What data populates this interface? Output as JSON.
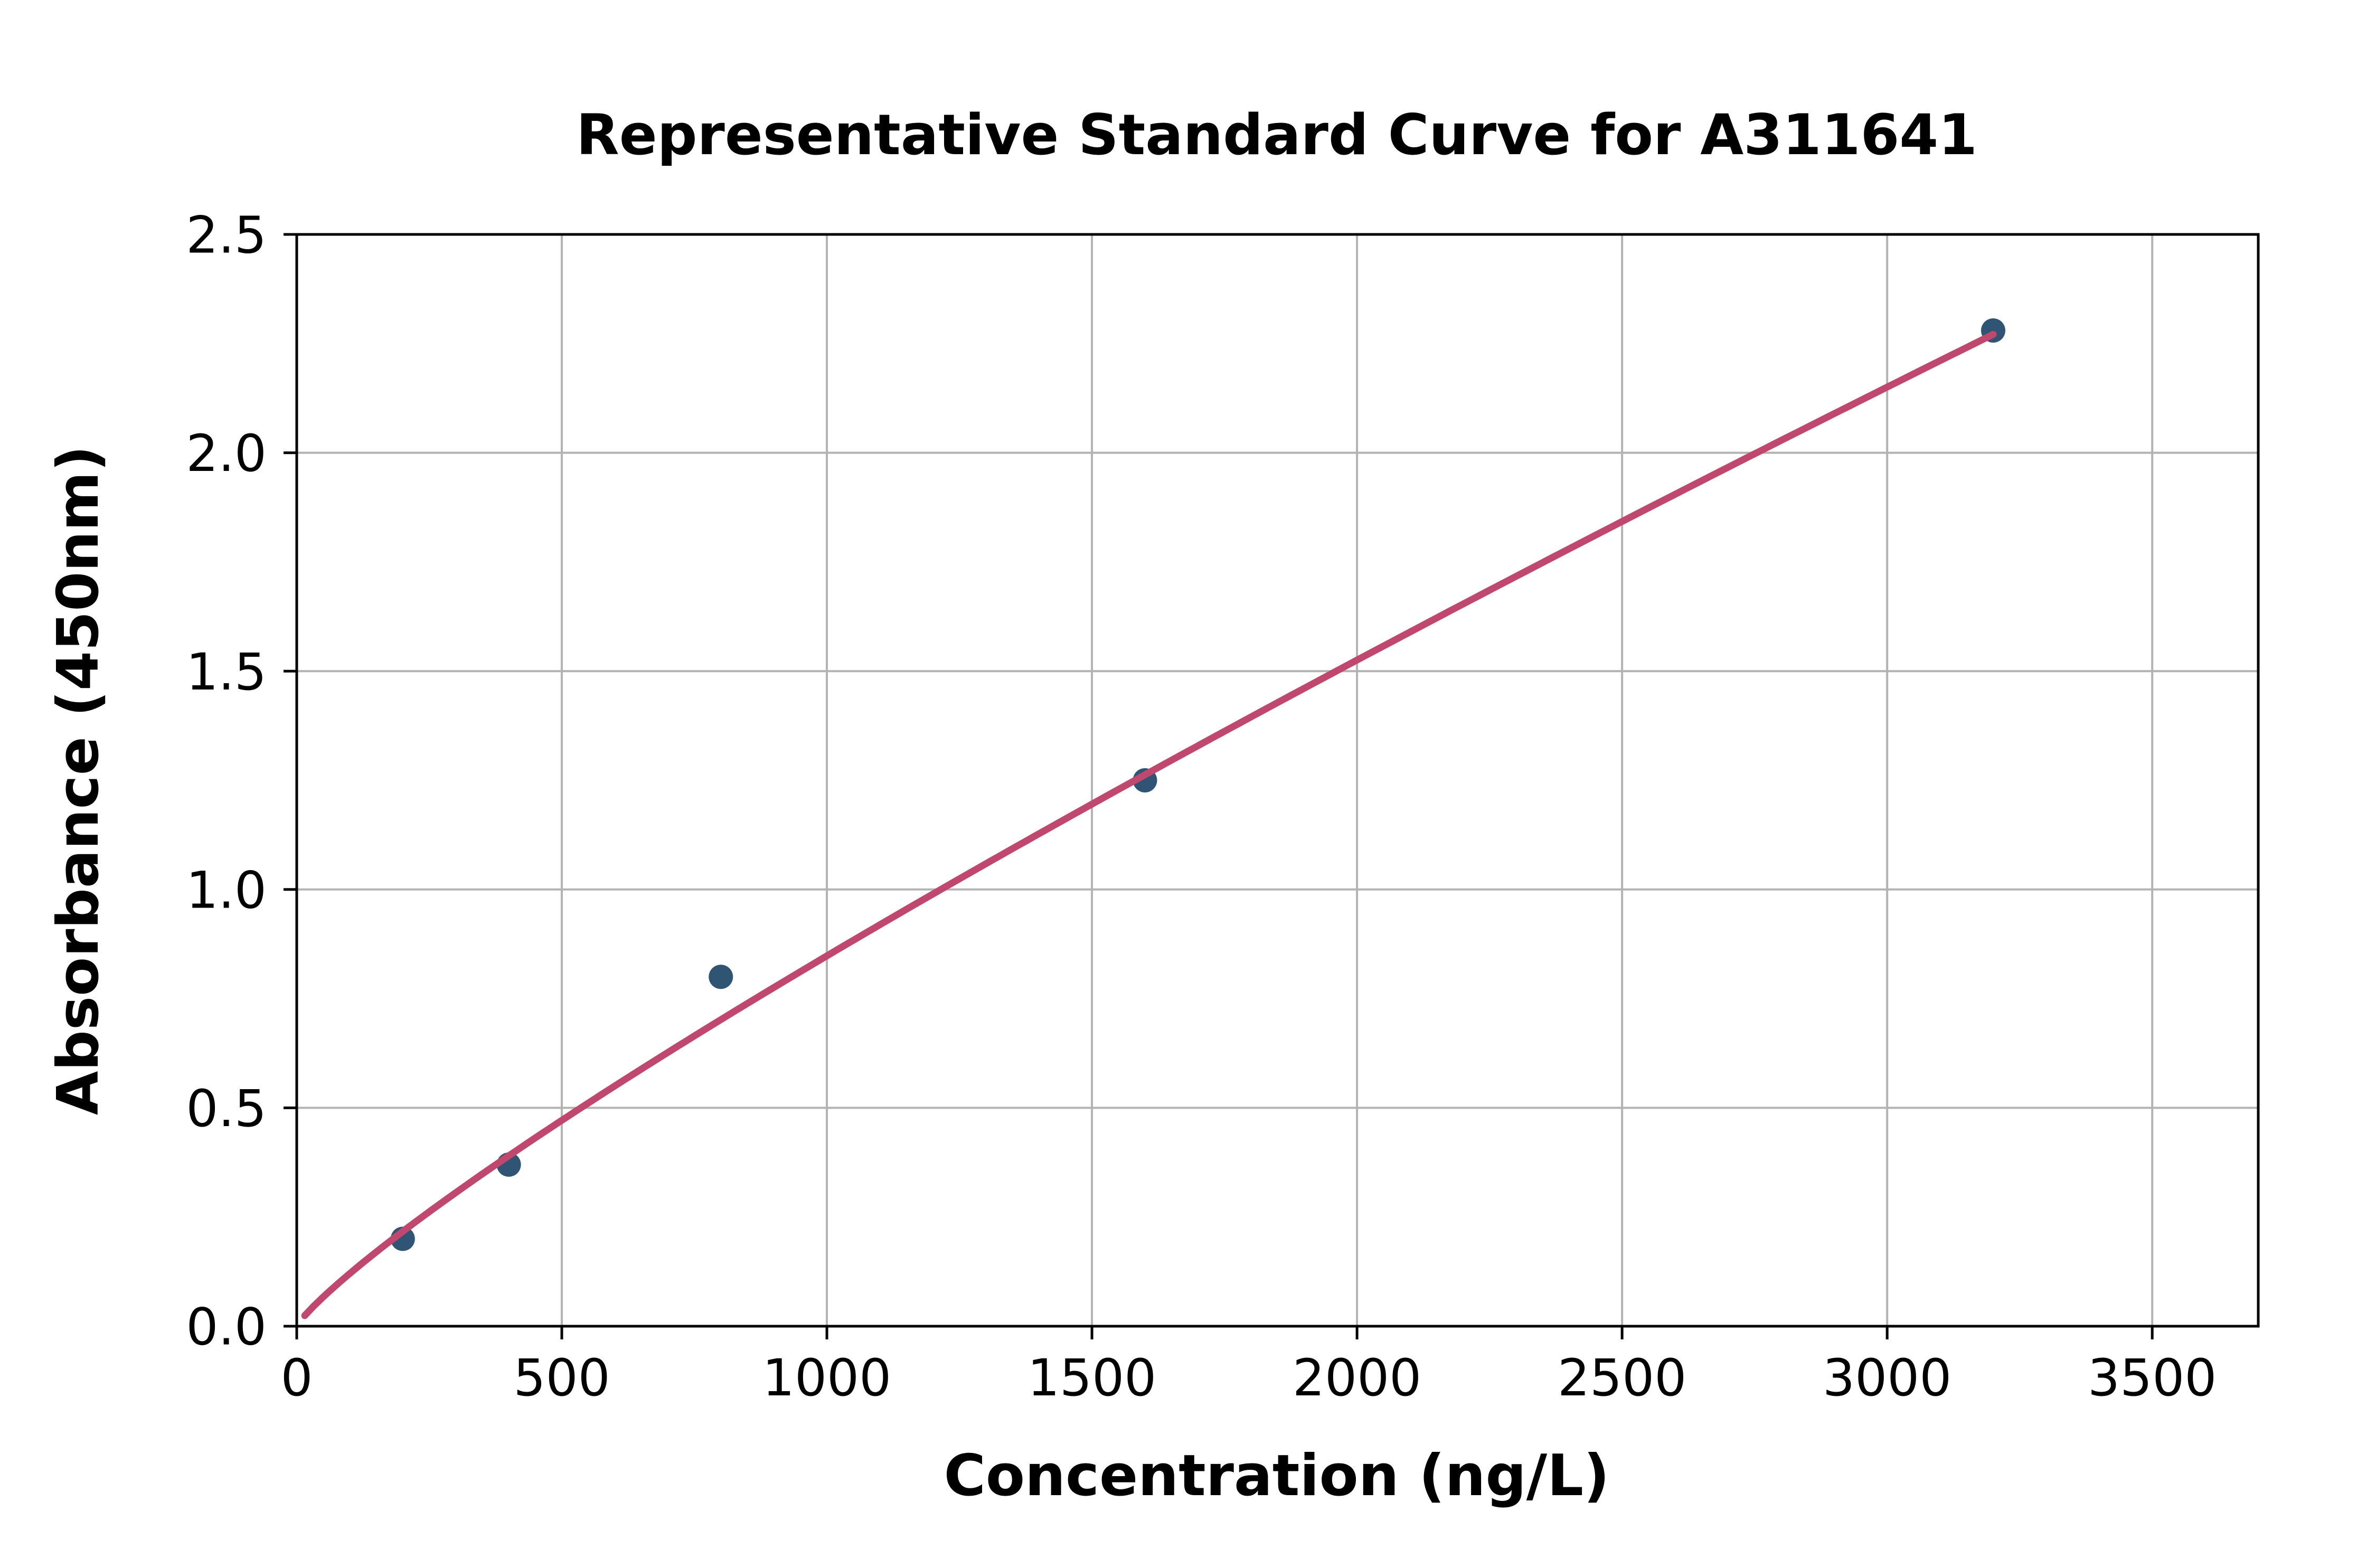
{
  "chart_data": {
    "type": "scatter",
    "title": "Representative Standard Curve for A311641",
    "xlabel": "Concentration (ng/L)",
    "ylabel": "Absorbance (450nm)",
    "xlim": [
      0,
      3700
    ],
    "ylim": [
      0,
      2.5
    ],
    "x_ticks": [
      0,
      500,
      1000,
      1500,
      2000,
      2500,
      3000,
      3500
    ],
    "y_ticks": [
      0.0,
      0.5,
      1.0,
      1.5,
      2.0,
      2.5
    ],
    "y_tick_decimals": 1,
    "grid": true,
    "legend": "none",
    "series": [
      {
        "name": "standard-points",
        "kind": "scatter",
        "points": [
          {
            "x": 200,
            "y": 0.2
          },
          {
            "x": 400,
            "y": 0.37
          },
          {
            "x": 800,
            "y": 0.8
          },
          {
            "x": 1600,
            "y": 1.25
          },
          {
            "x": 3200,
            "y": 2.28
          }
        ]
      },
      {
        "name": "fitted-curve",
        "kind": "line",
        "fit": {
          "model": "power",
          "a": 0.00244,
          "b": 0.847,
          "x_start": 15,
          "x_end": 3200
        }
      }
    ],
    "colors": {
      "points": "#2f5474",
      "curve": "#c0486f",
      "grid": "#b3b3b3",
      "axis": "#000000",
      "background": "#ffffff"
    }
  }
}
